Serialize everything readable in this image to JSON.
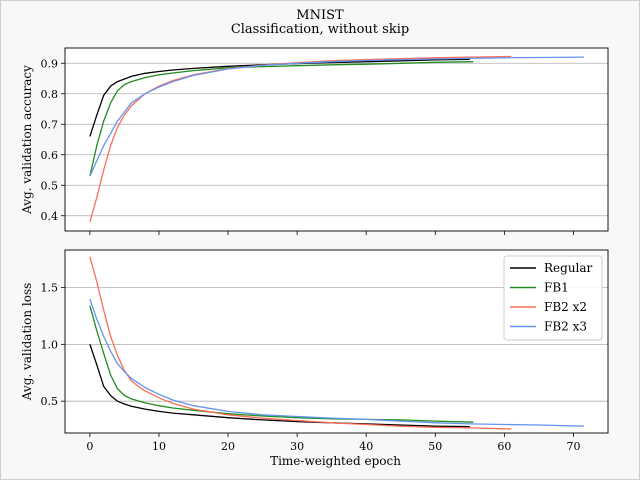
{
  "figure": {
    "title_line1": "MNIST",
    "title_line2": "Classification, without skip"
  },
  "chart_data": [
    {
      "type": "line",
      "panel": "top",
      "title": "",
      "xlabel": "",
      "ylabel": "Avg. validation accuracy",
      "xlim": [
        -3.6,
        75.0
      ],
      "ylim": [
        0.35,
        0.95
      ],
      "xticks": [
        0,
        10,
        20,
        30,
        40,
        50,
        60,
        70
      ],
      "yticks": [
        0.4,
        0.5,
        0.6,
        0.7,
        0.8,
        0.9
      ],
      "ytick_labels": [
        "0.4",
        "0.5",
        "0.6",
        "0.7",
        "0.8",
        "0.9"
      ],
      "grid": "horizontal",
      "series": [
        {
          "name": "Regular",
          "color": "#000000",
          "x": [
            0,
            1,
            2,
            3,
            4,
            6,
            8,
            10,
            12,
            15,
            20,
            25,
            30,
            35,
            40,
            45,
            50,
            55
          ],
          "y": [
            0.66,
            0.73,
            0.795,
            0.825,
            0.84,
            0.857,
            0.867,
            0.873,
            0.878,
            0.883,
            0.89,
            0.895,
            0.899,
            0.902,
            0.905,
            0.908,
            0.911,
            0.913
          ]
        },
        {
          "name": "FB1",
          "color": "#228b22",
          "x": [
            0,
            1,
            2,
            3,
            4,
            5,
            6,
            8,
            10,
            12,
            15,
            20,
            25,
            30,
            35,
            40,
            45,
            50,
            55.5
          ],
          "y": [
            0.53,
            0.63,
            0.71,
            0.77,
            0.81,
            0.83,
            0.84,
            0.853,
            0.862,
            0.868,
            0.876,
            0.885,
            0.889,
            0.892,
            0.895,
            0.897,
            0.9,
            0.903,
            0.905
          ]
        },
        {
          "name": "FB2 x2",
          "color": "#fa6e57",
          "x": [
            0,
            1,
            2,
            3,
            4,
            5,
            6,
            7,
            8,
            10,
            12,
            15,
            20,
            25,
            30,
            35,
            40,
            45,
            50,
            55,
            61
          ],
          "y": [
            0.38,
            0.46,
            0.55,
            0.63,
            0.69,
            0.73,
            0.76,
            0.78,
            0.8,
            0.825,
            0.843,
            0.862,
            0.882,
            0.894,
            0.902,
            0.908,
            0.912,
            0.915,
            0.918,
            0.92,
            0.922
          ]
        },
        {
          "name": "FB2 x3",
          "color": "#6495ed",
          "x": [
            0,
            1,
            2,
            3,
            4,
            5,
            6,
            8,
            10,
            12,
            15,
            20,
            25,
            30,
            35,
            40,
            45,
            50,
            55,
            60,
            65,
            71.5
          ],
          "y": [
            0.53,
            0.58,
            0.63,
            0.67,
            0.71,
            0.74,
            0.77,
            0.8,
            0.822,
            0.84,
            0.86,
            0.881,
            0.893,
            0.9,
            0.905,
            0.909,
            0.912,
            0.914,
            0.916,
            0.918,
            0.919,
            0.92
          ]
        }
      ]
    },
    {
      "type": "line",
      "panel": "bottom",
      "title": "",
      "xlabel": "Time-weighted epoch",
      "ylabel": "Avg. validation loss",
      "xlim": [
        -3.6,
        75.0
      ],
      "ylim": [
        0.22,
        1.83
      ],
      "xticks": [
        0,
        10,
        20,
        30,
        40,
        50,
        60,
        70
      ],
      "yticks": [
        0.5,
        1.0,
        1.5
      ],
      "ytick_labels": [
        "0.5",
        "1.0",
        "1.5"
      ],
      "grid": "horizontal",
      "legend": "top-right",
      "series": [
        {
          "name": "Regular",
          "color": "#000000",
          "x": [
            0,
            1,
            2,
            3,
            4,
            5,
            6,
            8,
            10,
            12,
            15,
            20,
            25,
            30,
            35,
            40,
            45,
            50,
            55
          ],
          "y": [
            1.0,
            0.82,
            0.63,
            0.55,
            0.5,
            0.475,
            0.455,
            0.43,
            0.41,
            0.395,
            0.38,
            0.355,
            0.335,
            0.32,
            0.31,
            0.3,
            0.29,
            0.28,
            0.275
          ]
        },
        {
          "name": "FB1",
          "color": "#228b22",
          "x": [
            0,
            1,
            2,
            3,
            4,
            5,
            6,
            8,
            10,
            12,
            15,
            20,
            25,
            30,
            35,
            40,
            45,
            50,
            55.5
          ],
          "y": [
            1.34,
            1.12,
            0.92,
            0.73,
            0.61,
            0.55,
            0.52,
            0.485,
            0.46,
            0.44,
            0.42,
            0.39,
            0.37,
            0.355,
            0.345,
            0.34,
            0.335,
            0.325,
            0.315
          ]
        },
        {
          "name": "FB2 x2",
          "color": "#fa6e57",
          "x": [
            0,
            1,
            2,
            3,
            4,
            5,
            6,
            7,
            8,
            10,
            12,
            15,
            20,
            25,
            30,
            35,
            40,
            45,
            50,
            55,
            61
          ],
          "y": [
            1.77,
            1.55,
            1.3,
            1.07,
            0.9,
            0.77,
            0.68,
            0.63,
            0.59,
            0.53,
            0.48,
            0.43,
            0.38,
            0.35,
            0.33,
            0.31,
            0.295,
            0.28,
            0.27,
            0.265,
            0.255
          ]
        },
        {
          "name": "FB2 x3",
          "color": "#6495ed",
          "x": [
            0,
            1,
            2,
            3,
            4,
            5,
            6,
            8,
            10,
            12,
            15,
            20,
            25,
            30,
            35,
            40,
            45,
            50,
            55,
            60,
            65,
            71.5
          ],
          "y": [
            1.4,
            1.22,
            1.07,
            0.94,
            0.83,
            0.76,
            0.7,
            0.62,
            0.56,
            0.51,
            0.46,
            0.41,
            0.38,
            0.365,
            0.35,
            0.34,
            0.325,
            0.31,
            0.3,
            0.295,
            0.29,
            0.28
          ]
        }
      ]
    }
  ]
}
